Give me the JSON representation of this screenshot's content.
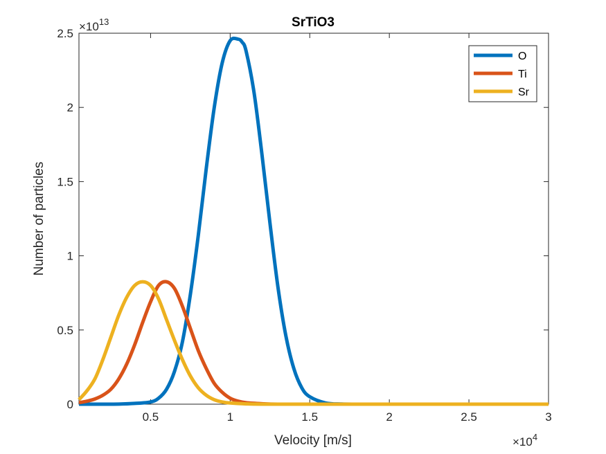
{
  "chart_data": {
    "type": "line",
    "title": "SrTiO3",
    "xlabel": "Velocity [m/s]",
    "ylabel": "Number of particles",
    "x_multiplier": {
      "base": "×10",
      "exponent": "4"
    },
    "y_multiplier": {
      "base": "×10",
      "exponent": "13"
    },
    "xlim": [
      0.05,
      3
    ],
    "ylim": [
      0,
      2.5
    ],
    "x_ticks": [
      "0.5",
      "1",
      "1.5",
      "2",
      "2.5",
      "3"
    ],
    "y_ticks": [
      "0",
      "0.5",
      "1",
      "1.5",
      "2",
      "2.5"
    ],
    "legend_position": "top-right",
    "grid": false,
    "series": [
      {
        "name": "O",
        "color": "#0072BD",
        "x": [
          0.05,
          0.2,
          0.3,
          0.4,
          0.5,
          0.55,
          0.6,
          0.65,
          0.7,
          0.75,
          0.8,
          0.85,
          0.9,
          0.95,
          1.0,
          1.05,
          1.075,
          1.1,
          1.15,
          1.2,
          1.25,
          1.3,
          1.35,
          1.4,
          1.45,
          1.5,
          1.6,
          1.7,
          1.8,
          2.0,
          2.5,
          3.0
        ],
        "y": [
          0,
          0,
          0.0005,
          0.005,
          0.015,
          0.04,
          0.1,
          0.22,
          0.42,
          0.74,
          1.14,
          1.59,
          2.0,
          2.3,
          2.45,
          2.46,
          2.44,
          2.38,
          2.1,
          1.68,
          1.22,
          0.79,
          0.46,
          0.24,
          0.11,
          0.05,
          0.008,
          0.001,
          0,
          0,
          0,
          0
        ]
      },
      {
        "name": "Ti",
        "color": "#D95319",
        "x": [
          0.05,
          0.1,
          0.15,
          0.2,
          0.25,
          0.3,
          0.35,
          0.4,
          0.45,
          0.5,
          0.55,
          0.6,
          0.65,
          0.7,
          0.75,
          0.8,
          0.85,
          0.9,
          0.95,
          1.0,
          1.05,
          1.1,
          1.2,
          1.3,
          1.5,
          2.0,
          3.0
        ],
        "y": [
          0.01,
          0.02,
          0.035,
          0.06,
          0.1,
          0.17,
          0.27,
          0.4,
          0.55,
          0.69,
          0.8,
          0.825,
          0.78,
          0.66,
          0.51,
          0.36,
          0.24,
          0.14,
          0.08,
          0.04,
          0.02,
          0.01,
          0.003,
          0,
          0,
          0,
          0
        ]
      },
      {
        "name": "Sr",
        "color": "#EDB120",
        "x": [
          0.05,
          0.1,
          0.15,
          0.2,
          0.25,
          0.3,
          0.35,
          0.4,
          0.45,
          0.5,
          0.55,
          0.6,
          0.65,
          0.7,
          0.75,
          0.8,
          0.85,
          0.9,
          0.95,
          1.0,
          1.1,
          1.2,
          1.5,
          2.0,
          3.0
        ],
        "y": [
          0.03,
          0.09,
          0.17,
          0.3,
          0.45,
          0.6,
          0.72,
          0.8,
          0.825,
          0.8,
          0.71,
          0.57,
          0.43,
          0.3,
          0.19,
          0.11,
          0.06,
          0.03,
          0.015,
          0.008,
          0.002,
          0,
          0,
          0,
          0
        ]
      }
    ]
  }
}
